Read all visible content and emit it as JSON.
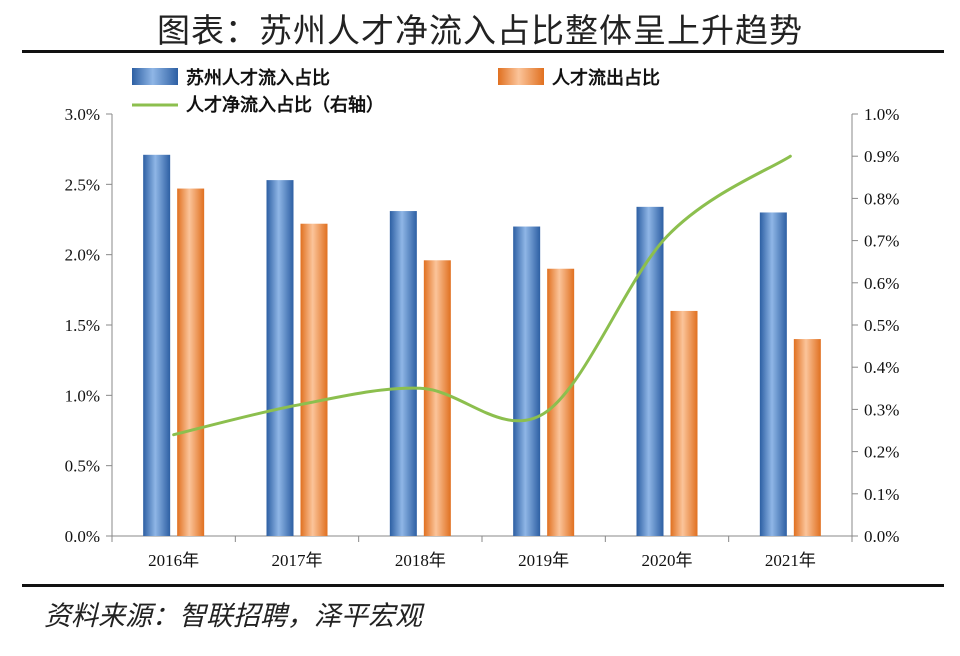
{
  "header": {
    "title": "图表：苏州人才净流入占比整体呈上升趋势"
  },
  "footer": {
    "source": "资料来源：智联招聘，泽平宏观"
  },
  "chart_data": {
    "type": "bar",
    "categories": [
      "2016年",
      "2017年",
      "2018年",
      "2019年",
      "2020年",
      "2021年"
    ],
    "series": [
      {
        "name": "苏州人才流入占比",
        "type": "bar",
        "axis": "left",
        "color": "#3b78c4",
        "values": [
          2.71,
          2.53,
          2.31,
          2.2,
          2.34,
          2.3
        ]
      },
      {
        "name": "人才流出占比",
        "type": "bar",
        "axis": "left",
        "color": "#f08a3c",
        "values": [
          2.47,
          2.22,
          1.96,
          1.9,
          1.6,
          1.4
        ]
      },
      {
        "name": "人才净流入占比（右轴）",
        "type": "line",
        "axis": "right",
        "color": "#8cbf4e",
        "values": [
          0.24,
          0.31,
          0.35,
          0.29,
          0.71,
          0.9
        ]
      }
    ],
    "y_left": {
      "min": 0,
      "max": 3.0,
      "step": 0.5,
      "ticks": [
        "0.0%",
        "0.5%",
        "1.0%",
        "1.5%",
        "2.0%",
        "2.5%",
        "3.0%"
      ]
    },
    "y_right": {
      "min": 0,
      "max": 1.0,
      "step": 0.1,
      "ticks": [
        "0.0%",
        "0.1%",
        "0.2%",
        "0.3%",
        "0.4%",
        "0.5%",
        "0.6%",
        "0.7%",
        "0.8%",
        "0.9%",
        "1.0%"
      ]
    },
    "legend_position": "top-left"
  }
}
